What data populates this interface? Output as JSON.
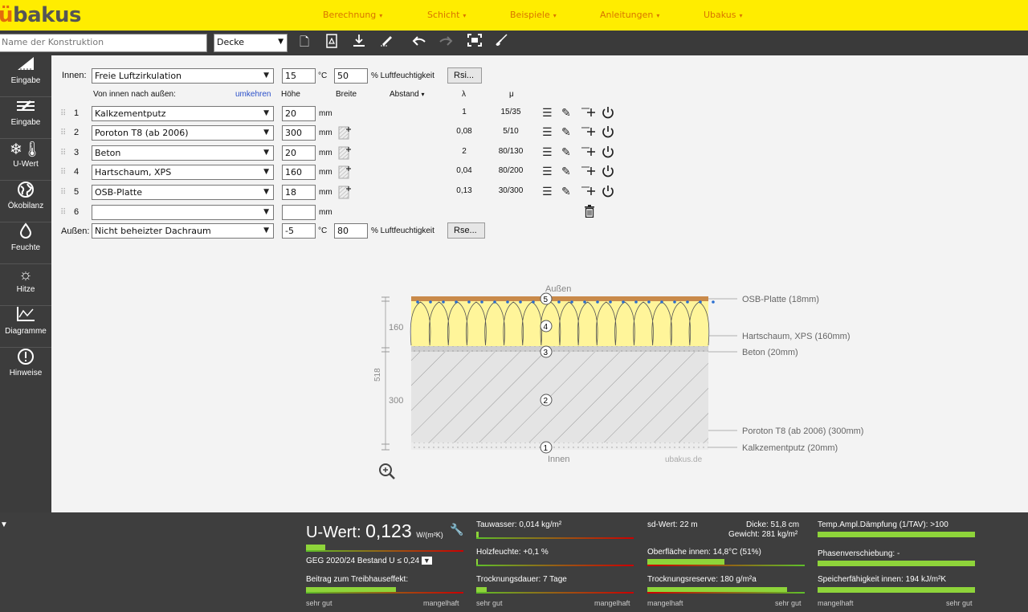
{
  "app": {
    "logo": "ubakus"
  },
  "nav": [
    {
      "label": "Berechnung"
    },
    {
      "label": "Schicht"
    },
    {
      "label": "Beispiele"
    },
    {
      "label": "Anleitungen"
    },
    {
      "label": "Ubakus"
    }
  ],
  "toolbar": {
    "name_placeholder": "Name der Konstruktion",
    "type_value": "Decke",
    "icons": [
      "new-file-icon",
      "pdf-icon",
      "download-icon",
      "edit-icon",
      "undo-icon",
      "redo-icon",
      "fullscreen-icon",
      "clear-icon"
    ]
  },
  "sidebar": [
    {
      "label": "Eingabe",
      "icon": "roof-icon"
    },
    {
      "label": "Eingabe",
      "icon": "layers-icon"
    },
    {
      "label": "U-Wert",
      "icon": "thermometer-icon"
    },
    {
      "label": "Ökobilanz",
      "icon": "globe-icon"
    },
    {
      "label": "Feuchte",
      "icon": "drop-icon"
    },
    {
      "label": "Hitze",
      "icon": "sun-icon"
    },
    {
      "label": "Diagramme",
      "icon": "chart-icon"
    },
    {
      "label": "Hinweise",
      "icon": "alert-icon"
    }
  ],
  "inside": {
    "label": "Innen:",
    "condition": "Freie Luftzirkulation",
    "temp": "15",
    "temp_unit": "°C",
    "humidity": "50",
    "humidity_label": "% Luftfeuchtigkeit",
    "button": "Rsi..."
  },
  "outside": {
    "label": "Außen:",
    "condition": "Nicht beheizter Dachraum",
    "temp": "-5",
    "temp_unit": "°C",
    "humidity": "80",
    "humidity_label": "% Luftfeuchtigkeit",
    "button": "Rse..."
  },
  "header": {
    "direction": "Von innen nach außen:",
    "reverse": "umkehren",
    "height": "Höhe",
    "width": "Breite",
    "spacing": "Abstand",
    "lambda": "λ",
    "mu": "μ"
  },
  "layers": [
    {
      "num": "1",
      "material": "Kalkzementputz",
      "height": "20",
      "unit": "mm",
      "lambda": "1",
      "mu": "15/35"
    },
    {
      "num": "2",
      "material": "Poroton T8 (ab 2006)",
      "height": "300",
      "unit": "mm",
      "lambda": "0,08",
      "mu": "5/10"
    },
    {
      "num": "3",
      "material": "Beton",
      "height": "20",
      "unit": "mm",
      "lambda": "2",
      "mu": "80/130"
    },
    {
      "num": "4",
      "material": "Hartschaum, XPS",
      "height": "160",
      "unit": "mm",
      "lambda": "0,04",
      "mu": "80/200"
    },
    {
      "num": "5",
      "material": "OSB-Platte",
      "height": "18",
      "unit": "mm",
      "lambda": "0,13",
      "mu": "30/300"
    },
    {
      "num": "6",
      "material": "",
      "height": "",
      "unit": "mm",
      "lambda": "",
      "mu": ""
    }
  ],
  "diagram": {
    "top_label": "Außen",
    "bottom_label": "Innen",
    "watermark": "ubakus.de",
    "total": "518",
    "dim_upper": "160",
    "dim_lower": "300",
    "labels": [
      "OSB-Platte (18mm)",
      "Hartschaum, XPS (160mm)",
      "Beton (20mm)",
      "Poroton T8 (ab 2006) (300mm)",
      "Kalkzementputz (20mm)"
    ],
    "markers": [
      "5",
      "4",
      "3",
      "2",
      "1"
    ],
    "colors": {
      "insulation": "#fff59a",
      "osb": "#c98a4a",
      "brick": "#e6e6e6",
      "concrete": "#d0d0d0"
    }
  },
  "results": {
    "uwert_label": "U-Wert:",
    "uwert_value": "0,123",
    "uwert_unit": "W/(m²K)",
    "geg": "GEG 2020/24 Bestand U ≤ 0,24",
    "treibhaus": "Beitrag zum Treibhauseffekt:",
    "scale1_left": "sehr gut",
    "scale1_right": "mangelhaft",
    "tauwasser": "Tauwasser: 0,014 kg/m²",
    "holzfeuchte": "Holzfeuchte: +0,1 %",
    "trocknungsdauer": "Trocknungsdauer: 7 Tage",
    "scale2_left": "sehr gut",
    "scale2_right": "mangelhaft",
    "sdwert": "sd-Wert: 22 m",
    "dicke": "Dicke: 51,8 cm",
    "gewicht": "Gewicht: 281 kg/m²",
    "oberflaeche": "Oberfläche innen: 14,8°C (51%)",
    "trocknungsreserve": "Trocknungsreserve: 180 g/m²a",
    "scale3_left": "mangelhaft",
    "scale3_right": "sehr gut",
    "tav": "Temp.Ampl.Dämpfung (1/TAV): >100",
    "phase": "Phasenverschiebung: -",
    "speicher": "Speicherfähigkeit innen: 194 kJ/m²K",
    "scale4_left": "mangelhaft",
    "scale4_right": "sehr gut",
    "levels": {
      "uwert": 0.12,
      "treibhaus": 0.52,
      "tauwasser": 0.02,
      "holzfeuchte": 0.01,
      "trocknungsdauer": 0.06,
      "oberflaeche": 0.5,
      "trocknungsreserve": 0.9,
      "tav": 1.0,
      "speicher": 1.0
    }
  }
}
